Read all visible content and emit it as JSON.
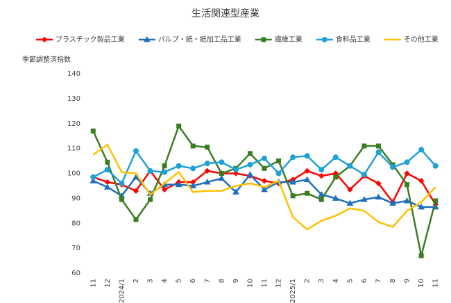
{
  "chart_data": {
    "type": "line",
    "title": "生活関連型産業",
    "y_label": "季節調整済指数",
    "categories": [
      "11",
      "12",
      "2024/1",
      "2",
      "3",
      "4",
      "5",
      "6",
      "7",
      "8",
      "9",
      "10",
      "11",
      "12",
      "2025/1",
      "2",
      "3",
      "4",
      "5",
      "6",
      "7",
      "8",
      "9",
      "10",
      "11"
    ],
    "ylim": [
      60,
      140
    ],
    "yticks": [
      60,
      70,
      80,
      90,
      100,
      110,
      120,
      130,
      140
    ],
    "grid": false,
    "legend": "top",
    "series": [
      {
        "name": "プラスチック製品工業",
        "color": "#ff0000",
        "marker": "diamond",
        "values": [
          98.5,
          96.5,
          95.5,
          93,
          101,
          93.5,
          96.5,
          96.5,
          101,
          100,
          100,
          99,
          97,
          96,
          97.5,
          101,
          99,
          100,
          93.5,
          99,
          96,
          88.5,
          100,
          97,
          87.5
        ]
      },
      {
        "name": "パルプ・紙・紙加工品工業",
        "color": "#1f6fbf",
        "marker": "triangle",
        "values": [
          97,
          94.5,
          91,
          98.5,
          92,
          95.5,
          95.5,
          95,
          96.5,
          98,
          92.5,
          99.5,
          93.5,
          96.5,
          96.5,
          97.5,
          91.5,
          90,
          88,
          89.5,
          90.5,
          88,
          89,
          86.5,
          86.5
        ]
      },
      {
        "name": "繊維工業",
        "color": "#3a7d22",
        "marker": "square",
        "values": [
          117,
          104.5,
          89.5,
          81.5,
          89.5,
          103,
          119,
          111,
          110.5,
          100,
          102,
          108,
          102,
          105,
          91,
          92,
          89.5,
          98.5,
          103,
          111,
          111,
          103.5,
          95.5,
          67,
          89
        ]
      },
      {
        "name": "食料品工業",
        "color": "#1ea0d8",
        "marker": "circle",
        "values": [
          98.5,
          101.5,
          96,
          109,
          101,
          100.5,
          103,
          102,
          104,
          104.5,
          101.5,
          103.5,
          106,
          100,
          106.5,
          107,
          101.5,
          106.5,
          103,
          99.5,
          108.5,
          102.5,
          104.5,
          109.5,
          103
        ]
      },
      {
        "name": "その他工業",
        "color": "#ffc000",
        "marker": "none",
        "values": [
          107.5,
          111.5,
          100.5,
          100,
          91.5,
          96,
          100.5,
          92.5,
          93,
          93,
          95,
          96,
          94.5,
          97,
          82.5,
          77.5,
          81,
          83,
          86,
          85,
          80.5,
          78.5,
          85,
          88.5,
          94.5
        ]
      }
    ]
  }
}
